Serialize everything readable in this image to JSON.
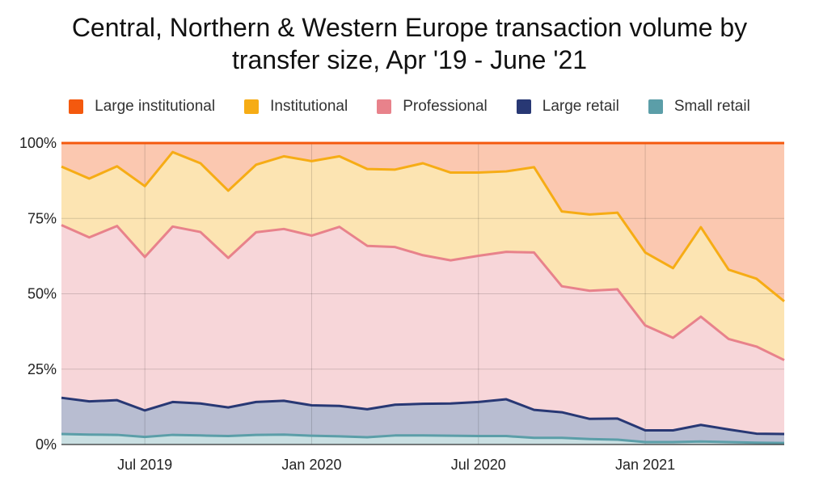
{
  "chart_data": {
    "type": "area",
    "stacked": true,
    "normalized": true,
    "title_lines": [
      "Central, Northern & Western Europe transaction volume by",
      "transfer size, Apr '19 - June '21"
    ],
    "x": [
      "2019-04",
      "2019-05",
      "2019-06",
      "2019-07",
      "2019-08",
      "2019-09",
      "2019-10",
      "2019-11",
      "2019-12",
      "2020-01",
      "2020-02",
      "2020-03",
      "2020-04",
      "2020-05",
      "2020-06",
      "2020-07",
      "2020-08",
      "2020-09",
      "2020-10",
      "2020-11",
      "2020-12",
      "2021-01",
      "2021-02",
      "2021-03",
      "2021-04",
      "2021-05",
      "2021-06"
    ],
    "x_tick_labels": [
      {
        "x": "2019-07",
        "label": "Jul 2019"
      },
      {
        "x": "2020-01",
        "label": "Jan 2020"
      },
      {
        "x": "2020-07",
        "label": "Jul 2020"
      },
      {
        "x": "2021-01",
        "label": "Jan 2021"
      }
    ],
    "y_tick_labels": [
      "0%",
      "25%",
      "50%",
      "75%",
      "100%"
    ],
    "ylim": [
      0,
      100
    ],
    "grid": true,
    "legend_position": "top",
    "series": [
      {
        "name": "Small retail",
        "color": "#5b9ea8",
        "cumulative": [
          3.5,
          3.3,
          3.2,
          2.5,
          3.2,
          3.0,
          2.8,
          3.2,
          3.3,
          2.9,
          2.7,
          2.4,
          3.0,
          3.0,
          2.9,
          2.8,
          2.8,
          2.2,
          2.2,
          1.8,
          1.6,
          0.8,
          0.8,
          1.0,
          0.8,
          0.6,
          0.5
        ]
      },
      {
        "name": "Large retail",
        "color": "#283874",
        "cumulative": [
          15.5,
          14.3,
          14.7,
          11.3,
          14.1,
          13.6,
          12.3,
          14.1,
          14.5,
          13.0,
          12.8,
          11.7,
          13.2,
          13.5,
          13.6,
          14.1,
          15.0,
          11.5,
          10.7,
          8.5,
          8.6,
          4.7,
          4.7,
          6.5,
          5.0,
          3.6,
          3.5
        ]
      },
      {
        "name": "Professional",
        "color": "#e8828b",
        "cumulative": [
          72.8,
          68.7,
          72.5,
          62.2,
          72.3,
          70.5,
          61.9,
          70.4,
          71.5,
          69.3,
          72.2,
          65.9,
          65.5,
          62.8,
          61.1,
          62.6,
          63.9,
          63.7,
          52.5,
          51.0,
          51.5,
          39.5,
          35.4,
          42.4,
          35.0,
          32.5,
          28.0
        ]
      },
      {
        "name": "Institutional",
        "color": "#f6ac15",
        "cumulative": [
          92.2,
          88.2,
          92.3,
          85.7,
          97.0,
          93.3,
          84.2,
          92.8,
          95.6,
          94.0,
          95.6,
          91.4,
          91.2,
          93.3,
          90.2,
          90.2,
          90.6,
          92.0,
          77.3,
          76.3,
          76.9,
          63.7,
          58.5,
          72.1,
          58.0,
          55.0,
          47.5
        ]
      },
      {
        "name": "Large institutional",
        "color": "#f4590e",
        "cumulative": [
          100,
          100,
          100,
          100,
          100,
          100,
          100,
          100,
          100,
          100,
          100,
          100,
          100,
          100,
          100,
          100,
          100,
          100,
          100,
          100,
          100,
          100,
          100,
          100,
          100,
          100,
          100
        ]
      }
    ],
    "legend_order": [
      "Large institutional",
      "Institutional",
      "Professional",
      "Large retail",
      "Small retail"
    ]
  }
}
